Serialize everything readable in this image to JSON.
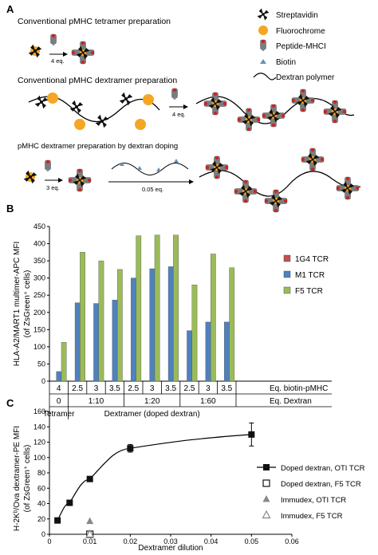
{
  "panel_a": {
    "label": "A",
    "row1_title": "Conventional pMHC tetramer preparation",
    "row2_title": "Conventional pMHC dextramer preparation",
    "row3_title": "pMHC dextramer preparation by dextran doping",
    "arrow_labels": [
      "4 eq.",
      "4 eq.",
      "3 eq.",
      "0.05 eq."
    ],
    "legend": [
      {
        "name": "Streptavidin",
        "icon": "streptavidin-icon"
      },
      {
        "name": "Fluorochrome",
        "icon": "fluorochrome-icon"
      },
      {
        "name": "Peptide-MHCI",
        "icon": "peptide-mhc-icon"
      },
      {
        "name": "Biotin",
        "icon": "biotin-icon"
      },
      {
        "name": "Dextran polymer",
        "icon": "dextran-polymer-icon"
      }
    ],
    "colors": {
      "fluorochrome": "#f5a623",
      "mhc": "#808080",
      "peptide": "#d21f1f",
      "biotin": "#6a8fb5"
    }
  },
  "panel_b": {
    "label": "B",
    "chart_data": {
      "type": "bar",
      "ylabel": "HLA-A2/MART1 multimer-APC MFI",
      "ylabel2": "(of ZsGreen⁺ cells)",
      "ylim": [
        0,
        450
      ],
      "yticks": [
        0,
        50,
        100,
        150,
        200,
        250,
        300,
        350,
        400,
        450
      ],
      "categories": [
        "4",
        "2.5",
        "3",
        "3.5",
        "2.5",
        "3",
        "3.5",
        "2.5",
        "3",
        "3.5"
      ],
      "series": [
        {
          "name": "1G4 TCR",
          "color": "#c0504d",
          "values": [
            0,
            0,
            0,
            0,
            0,
            0,
            0,
            0,
            0,
            0
          ]
        },
        {
          "name": "M1 TCR",
          "color": "#4f81bd",
          "values": [
            28,
            228,
            226,
            236,
            300,
            327,
            333,
            147,
            172,
            172
          ]
        },
        {
          "name": "F5 TCR",
          "color": "#9bbb59",
          "values": [
            113,
            375,
            350,
            325,
            423,
            425,
            425,
            280,
            370,
            330
          ]
        }
      ],
      "row1_label": "Eq. biotin-pMHC",
      "row2": [
        {
          "label": "0"
        },
        {
          "label": "1:10"
        },
        {
          "label": "1:20"
        },
        {
          "label": "1:60"
        }
      ],
      "row2_label": "Eq. Dextran",
      "row3": [
        {
          "label": "Tetramer"
        },
        {
          "label": "Dextramer (doped dextran)"
        }
      ],
      "legend_position": "right"
    }
  },
  "panel_c": {
    "label": "C",
    "chart_data": {
      "type": "scatter",
      "xlabel": "Dextramer dilution",
      "ylabel": "H-2Kᵇ/Ova dextramer-PE MFI",
      "ylabel2": "(of ZsGreen⁺ cells)",
      "xlim": [
        0,
        0.06
      ],
      "ylim": [
        0,
        160
      ],
      "xticks": [
        "0",
        "0.01",
        "0.02",
        "0.03",
        "0.04",
        "0.05",
        "0.06"
      ],
      "xtick_values": [
        0,
        0.01,
        0.02,
        0.03,
        0.04,
        0.05,
        0.06
      ],
      "yticks": [
        0,
        20,
        40,
        60,
        80,
        100,
        120,
        140,
        160
      ],
      "series": [
        {
          "name": "Doped dextran, OTI TCR",
          "marker": "filled-square",
          "x": [
            0.002,
            0.005,
            0.01,
            0.02,
            0.05
          ],
          "y": [
            18,
            41,
            72,
            112,
            130
          ],
          "err": [
            0,
            0,
            0,
            5,
            15
          ],
          "line": true
        },
        {
          "name": "Doped dextran, F5 TCR",
          "marker": "open-square",
          "x": [
            0.01
          ],
          "y": [
            0
          ],
          "err": [
            0
          ],
          "line": false
        },
        {
          "name": "Immudex, OTI TCR",
          "marker": "filled-triangle",
          "x": [
            0.01
          ],
          "y": [
            17
          ],
          "err": [
            0
          ],
          "line": false
        },
        {
          "name": "Immudex, F5 TCR",
          "marker": "open-triangle",
          "x": [
            0.01
          ],
          "y": [
            0
          ],
          "err": [
            0
          ],
          "line": false
        }
      ],
      "legend_position": "right"
    }
  }
}
